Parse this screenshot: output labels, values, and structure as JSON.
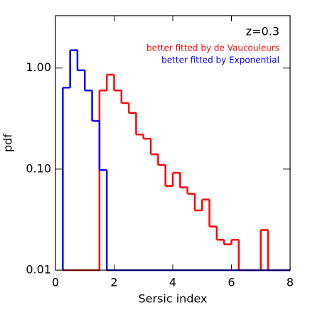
{
  "chart_data": {
    "type": "histogram",
    "title": "z=0.3",
    "x_label": "Sersic index",
    "y_label": "pdf",
    "log_y": true,
    "bins": [
      0.25,
      0.5,
      0.75,
      1.0,
      1.25,
      1.5,
      1.75,
      2.0,
      2.25,
      2.5,
      2.75,
      3.0,
      3.25,
      3.5,
      3.75,
      4.0,
      4.25,
      4.5,
      4.75,
      5.0,
      5.25,
      5.5,
      5.75,
      6.0,
      6.25,
      6.5,
      6.75,
      7.0,
      7.25,
      7.5,
      7.75,
      8.0
    ],
    "series": [
      {
        "name": "better fitted by de Vaucouleurs",
        "color": "#ff0000",
        "values": [
          0,
          0,
          0,
          0,
          0,
          0.6,
          0.86,
          0.6,
          0.45,
          0.36,
          0.22,
          0.2,
          0.14,
          0.11,
          0.068,
          0.092,
          0.066,
          0.057,
          0.039,
          0.05,
          0.027,
          0.02,
          0.018,
          0.02,
          0,
          0,
          0,
          0.025,
          0,
          0,
          0
        ]
      },
      {
        "name": "better fitted by Exponential",
        "color": "#0000ff",
        "values": [
          0.64,
          1.5,
          0.95,
          0.6,
          0.3,
          0.098,
          0,
          0,
          0,
          0,
          0,
          0,
          0,
          0,
          0,
          0,
          0,
          0,
          0,
          0,
          0,
          0,
          0,
          0,
          0,
          0,
          0,
          0,
          0,
          0,
          0
        ]
      }
    ],
    "xlim": [
      0,
      8
    ],
    "ylim": [
      0.01,
      3.3
    ],
    "xticks": [
      0,
      2,
      4,
      6,
      8
    ],
    "yticks": [
      {
        "value": 0.01,
        "label": "0.01"
      },
      {
        "value": 0.1,
        "label": "0.10"
      },
      {
        "value": 1,
        "label": "1.00"
      }
    ]
  }
}
